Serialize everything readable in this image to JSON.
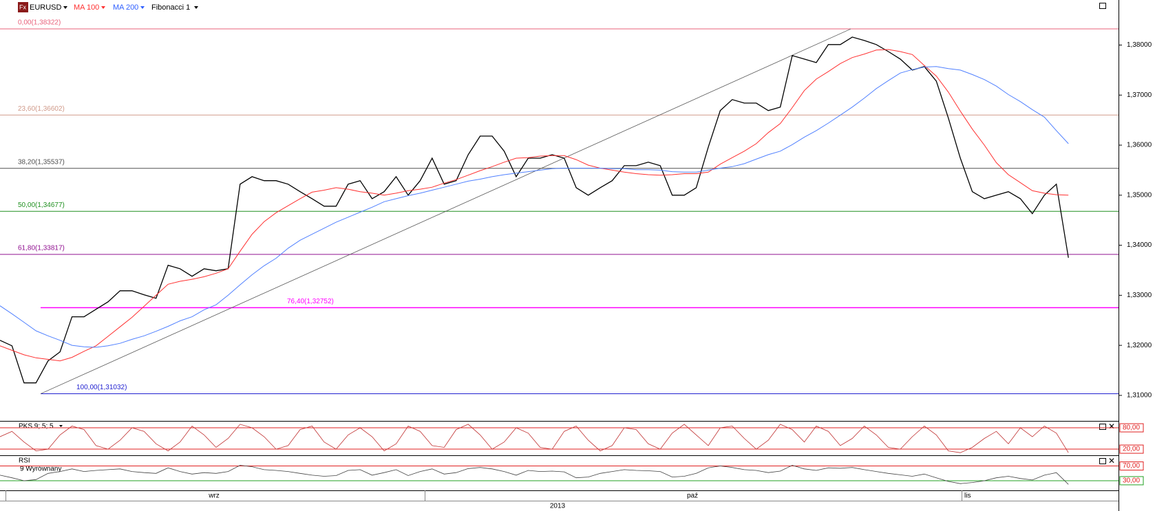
{
  "chart_data": [
    {
      "type": "line",
      "series": [
        {
          "name": "EURUSD",
          "color": "#000000",
          "values": [
            1.321,
            1.3199,
            1.3125,
            1.3125,
            1.3169,
            1.3187,
            1.3257,
            1.3257,
            1.3272,
            1.3287,
            1.3309,
            1.3309,
            1.3301,
            1.3294,
            1.336,
            1.3353,
            1.3338,
            1.3353,
            1.3349,
            1.3353,
            1.3522,
            1.3537,
            1.3529,
            1.3529,
            1.3522,
            1.3507,
            1.3493,
            1.3478,
            1.3478,
            1.3522,
            1.3529,
            1.3493,
            1.3507,
            1.3537,
            1.35,
            1.3529,
            1.3574,
            1.3522,
            1.3529,
            1.3581,
            1.3618,
            1.3618,
            1.3588,
            1.3537,
            1.3574,
            1.3574,
            1.3581,
            1.3574,
            1.3515,
            1.35,
            1.3515,
            1.3529,
            1.3559,
            1.3559,
            1.3566,
            1.3559,
            1.35,
            1.35,
            1.3515,
            1.3596,
            1.3669,
            1.3691,
            1.3684,
            1.3684,
            1.3669,
            1.3676,
            1.3779,
            1.3772,
            1.3765,
            1.3801,
            1.3801,
            1.3816,
            1.3809,
            1.3801,
            1.3787,
            1.3772,
            1.375,
            1.3757,
            1.3728,
            1.3654,
            1.3574,
            1.3507,
            1.3493,
            1.35,
            1.3507,
            1.3493,
            1.3463,
            1.35,
            1.3522,
            1.3375
          ]
        },
        {
          "name": "MA 100",
          "color": "#ff3030",
          "values": [
            1.3199,
            1.319,
            1.3181,
            1.3175,
            1.3172,
            1.3169,
            1.3176,
            1.3188,
            1.3199,
            1.3218,
            1.3237,
            1.3256,
            1.3278,
            1.33,
            1.3322,
            1.3328,
            1.3332,
            1.3337,
            1.3344,
            1.3353,
            1.3388,
            1.3422,
            1.3447,
            1.3465,
            1.3479,
            1.3493,
            1.3506,
            1.351,
            1.3515,
            1.3512,
            1.3507,
            1.3504,
            1.35,
            1.3504,
            1.3509,
            1.3512,
            1.3516,
            1.3524,
            1.3531,
            1.354,
            1.3549,
            1.3557,
            1.3566,
            1.3574,
            1.3575,
            1.3578,
            1.3579,
            1.3579,
            1.3571,
            1.356,
            1.3554,
            1.355,
            1.3546,
            1.3543,
            1.3541,
            1.354,
            1.3541,
            1.3543,
            1.3543,
            1.3546,
            1.3562,
            1.3575,
            1.3588,
            1.3603,
            1.3625,
            1.3643,
            1.3675,
            1.3709,
            1.3732,
            1.3747,
            1.3763,
            1.3775,
            1.3782,
            1.379,
            1.3791,
            1.3787,
            1.3781,
            1.3759,
            1.3738,
            1.3706,
            1.3668,
            1.3632,
            1.36,
            1.3565,
            1.3541,
            1.3525,
            1.3509,
            1.3504,
            1.3501,
            1.35
          ]
        },
        {
          "name": "MA 200",
          "color": "#5080ff",
          "values": [
            1.3279,
            1.3263,
            1.3246,
            1.3229,
            1.3219,
            1.321,
            1.32,
            1.3197,
            1.3196,
            1.3199,
            1.3204,
            1.3212,
            1.3219,
            1.3228,
            1.3238,
            1.3249,
            1.3257,
            1.3271,
            1.3281,
            1.33,
            1.3321,
            1.3341,
            1.3359,
            1.3374,
            1.3394,
            1.341,
            1.3422,
            1.3434,
            1.3446,
            1.3456,
            1.3466,
            1.3476,
            1.3487,
            1.3493,
            1.3499,
            1.3504,
            1.351,
            1.3516,
            1.3522,
            1.3528,
            1.3532,
            1.3537,
            1.3541,
            1.3544,
            1.3547,
            1.355,
            1.3553,
            1.3554,
            1.3554,
            1.3554,
            1.3554,
            1.3553,
            1.3553,
            1.3551,
            1.3551,
            1.355,
            1.3547,
            1.3546,
            1.3546,
            1.355,
            1.3554,
            1.3557,
            1.3563,
            1.3572,
            1.3581,
            1.3588,
            1.3601,
            1.3616,
            1.3629,
            1.3644,
            1.366,
            1.3676,
            1.3694,
            1.3713,
            1.3729,
            1.3744,
            1.3751,
            1.3756,
            1.3757,
            1.3753,
            1.375,
            1.3741,
            1.3731,
            1.3718,
            1.3701,
            1.3687,
            1.3671,
            1.3656,
            1.3629,
            1.3603
          ]
        }
      ],
      "ylim": [
        1.3049,
        1.389
      ],
      "yticks": [
        {
          "value": 1.38,
          "label": "1,38000"
        },
        {
          "value": 1.37,
          "label": "1,37000"
        },
        {
          "value": 1.36,
          "label": "1,36000"
        },
        {
          "value": 1.35,
          "label": "1,35000"
        },
        {
          "value": 1.34,
          "label": "1,34000"
        },
        {
          "value": 1.33,
          "label": "1,33000"
        },
        {
          "value": 1.32,
          "label": "1,32000"
        },
        {
          "value": 1.31,
          "label": "1,31000"
        }
      ],
      "fibonacci": {
        "name": "Fibonacci 1",
        "levels": [
          {
            "label": "0,00(1,38322)",
            "value": 1.38322,
            "color": "#e8607a"
          },
          {
            "label": "23,60(1,36602)",
            "value": 1.36602,
            "color": "#d09a8a"
          },
          {
            "label": "38,20(1,35537)",
            "value": 1.35537,
            "color": "#505050"
          },
          {
            "label": "50,00(1,34677)",
            "value": 1.34677,
            "color": "#209020"
          },
          {
            "label": "61,80(1,33817)",
            "value": 1.33817,
            "color": "#901090"
          },
          {
            "label": "76,40(1,32752)",
            "value": 1.32752,
            "color": "#ff00ff"
          },
          {
            "label": "100,00(1,31032)",
            "value": 1.31032,
            "color": "#2020d0"
          }
        ]
      },
      "months": [
        "wrz",
        "paź",
        "lis"
      ],
      "year": "2013"
    },
    {
      "type": "line",
      "title": "PKS 9; 5; 5",
      "series": [
        {
          "color": "#c03030",
          "values": [
            55,
            70,
            40,
            15,
            20,
            60,
            85,
            75,
            30,
            20,
            45,
            80,
            70,
            35,
            15,
            40,
            85,
            60,
            25,
            50,
            90,
            80,
            55,
            20,
            30,
            75,
            85,
            40,
            20,
            60,
            80,
            55,
            15,
            35,
            85,
            70,
            30,
            25,
            75,
            90,
            60,
            20,
            40,
            80,
            65,
            25,
            20,
            70,
            85,
            45,
            15,
            30,
            80,
            75,
            35,
            20,
            65,
            90,
            60,
            30,
            80,
            85,
            50,
            20,
            45,
            90,
            75,
            40,
            85,
            70,
            30,
            50,
            85,
            60,
            25,
            20,
            55,
            85,
            60,
            15,
            10,
            25,
            50,
            70,
            35,
            80,
            55,
            85,
            65,
            10
          ]
        }
      ],
      "ylim": [
        0,
        100
      ],
      "yticks": [
        {
          "value": 80,
          "label": "80,00",
          "color": "#e02020"
        },
        {
          "value": 20,
          "label": "20,00",
          "color": "#e02020"
        }
      ]
    },
    {
      "type": "line",
      "title": "RSI",
      "subtitle": "9 Wyrównany",
      "series": [
        {
          "color": "#404040",
          "values": [
            45,
            38,
            30,
            33,
            50,
            55,
            62,
            55,
            58,
            60,
            62,
            55,
            52,
            50,
            65,
            55,
            48,
            52,
            50,
            55,
            72,
            68,
            60,
            58,
            55,
            50,
            45,
            42,
            44,
            58,
            60,
            45,
            52,
            60,
            44,
            55,
            62,
            48,
            52,
            63,
            66,
            62,
            55,
            45,
            58,
            55,
            56,
            54,
            38,
            40,
            50,
            55,
            60,
            58,
            57,
            55,
            40,
            42,
            50,
            65,
            70,
            66,
            60,
            58,
            52,
            56,
            72,
            62,
            58,
            65,
            64,
            66,
            60,
            55,
            50,
            46,
            42,
            48,
            38,
            28,
            22,
            25,
            30,
            38,
            42,
            36,
            32,
            45,
            52,
            20
          ]
        }
      ],
      "ylim": [
        0,
        100
      ],
      "yticks": [
        {
          "value": 70,
          "label": "70,00",
          "color": "#e02020"
        },
        {
          "value": 30,
          "label": "30,00",
          "color": "#20a020"
        }
      ]
    }
  ]
}
